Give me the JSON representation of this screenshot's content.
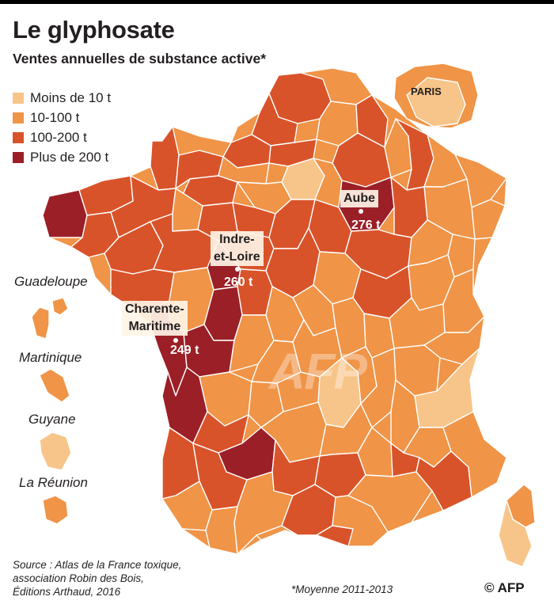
{
  "header": {
    "title": "Le glyphosate",
    "subtitle": "Ventes annuelles de substance active*"
  },
  "legend": {
    "items": [
      {
        "label": "Moins de 10 t",
        "color": "#f7c58a"
      },
      {
        "label": "10-100 t",
        "color": "#f09447"
      },
      {
        "label": "100-200 t",
        "color": "#d9532a"
      },
      {
        "label": "Plus de 200 t",
        "color": "#9b1f27"
      }
    ]
  },
  "map": {
    "inset_label": "PARIS",
    "overseas": [
      "Guadeloupe",
      "Martinique",
      "Guyane",
      "La Réunion"
    ],
    "callouts": [
      {
        "name_line1": "Aube",
        "name_line2": "",
        "value": "276 t"
      },
      {
        "name_line1": "Indre-",
        "name_line2": "et-Loire",
        "value": "260 t"
      },
      {
        "name_line1": "Charente-",
        "name_line2": "Maritime",
        "value": "249 t"
      }
    ],
    "watermark": "AFP"
  },
  "footer": {
    "source_line1": "Source : Atlas de la France toxique,",
    "source_line2": "association Robin des Bois,",
    "source_line3": "Éditions Arthaud, 2016",
    "footnote": "*Moyenne 2011-2013",
    "copyright": "© AFP"
  }
}
